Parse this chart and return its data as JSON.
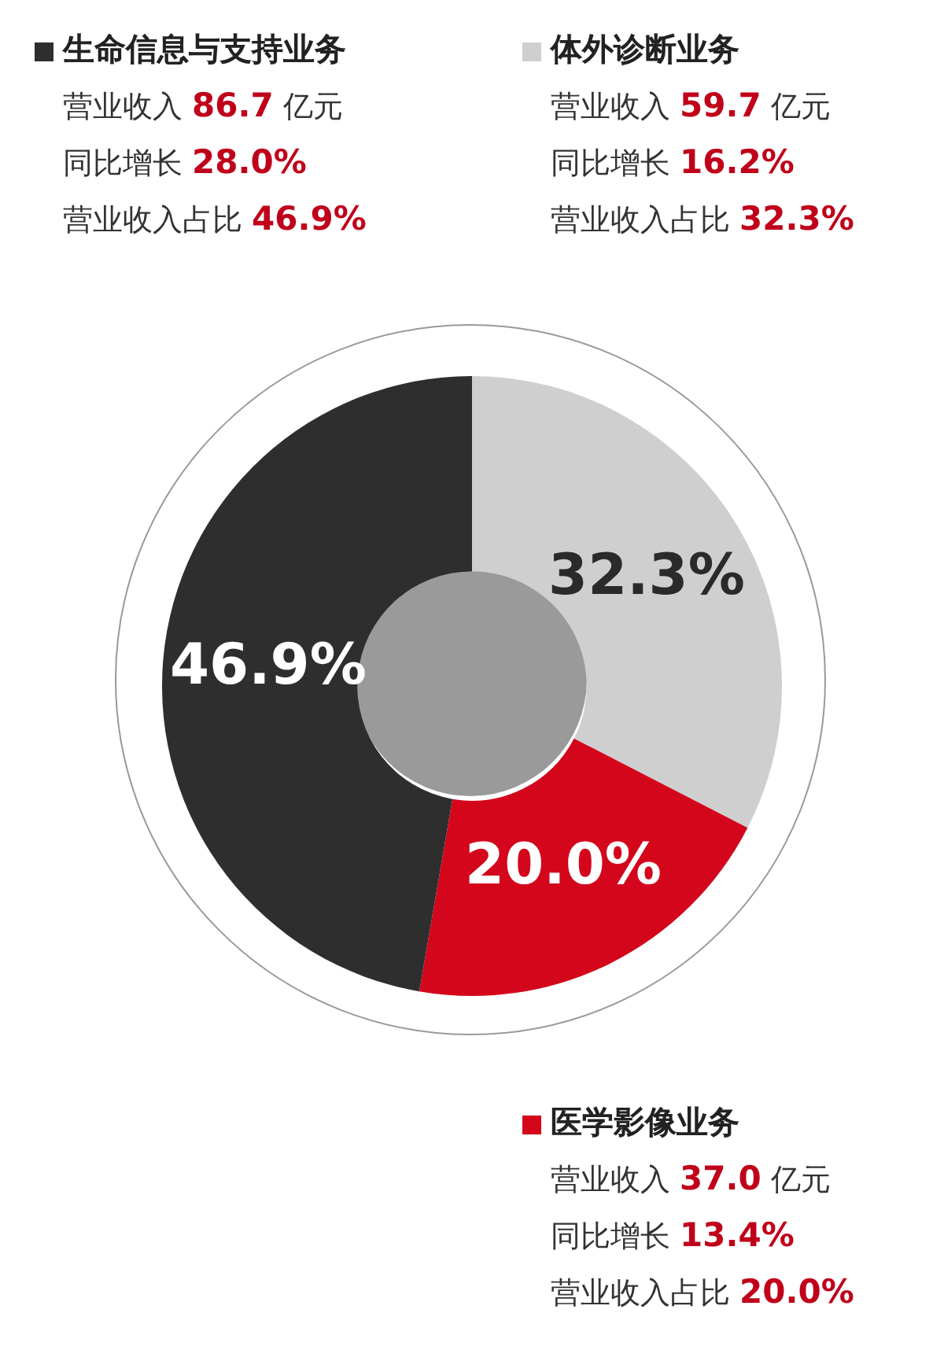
{
  "chart_data": {
    "type": "donut",
    "categories": [
      "体外诊断业务",
      "医学影像业务",
      "生命信息与支持业务"
    ],
    "values": [
      32.3,
      20.0,
      46.9
    ],
    "colors": [
      "#cfcfcf",
      "#d3061c",
      "#2e2e2e"
    ],
    "legend": "top",
    "value_labels": [
      "32.3%",
      "20.0%",
      "46.9%"
    ],
    "annotations": [
      "营业收入 59.7 亿元",
      "同比增长 16.2%",
      "营业收入占比 32.3%",
      "营业收入 37.0 亿元",
      "同比增长 13.4%",
      "营业收入占比 20.0%",
      "营业收入 86.7 亿元",
      "同比增长 28.0%",
      "营业收入占比 46.9%"
    ]
  }
}
